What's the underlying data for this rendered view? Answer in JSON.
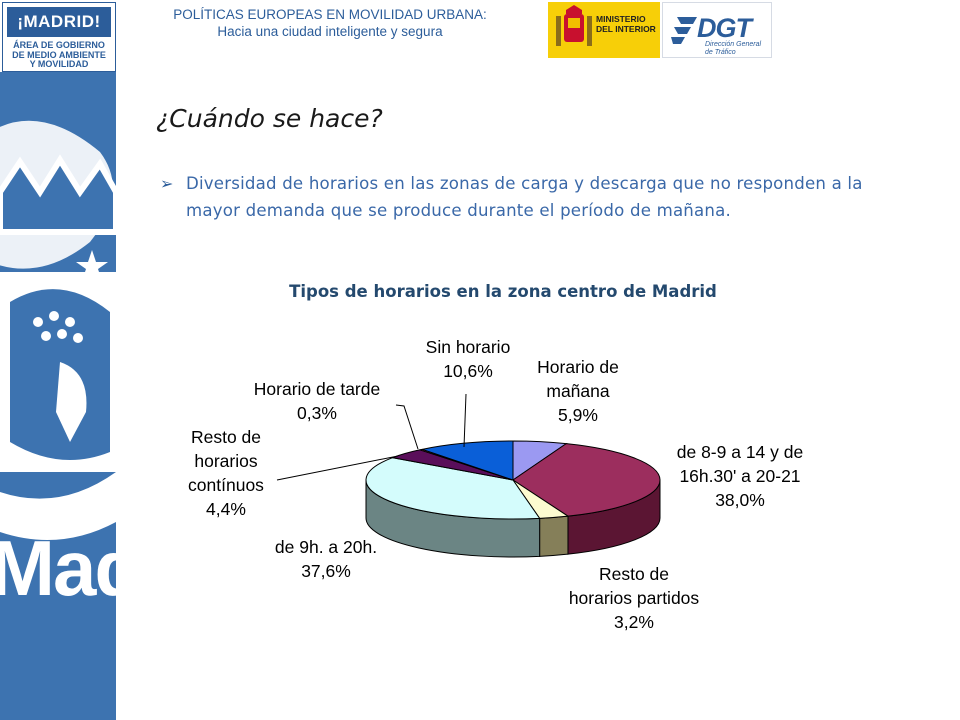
{
  "header": {
    "line1": "POLÍTICAS EUROPEAS EN MOVILIDAD URBANA:",
    "line2": "Hacia una ciudad inteligente y segura"
  },
  "logos": {
    "madrid_top": "¡MADRID!",
    "madrid_sub": [
      "ÁREA DE GOBIERNO",
      "DE MEDIO AMBIENTE",
      "Y MOVILIDAD"
    ],
    "ministry": [
      "MINISTERIO",
      "DEL INTERIOR"
    ],
    "dgt": "DGT",
    "dgt_sub": [
      "Dirección General",
      "de Tráfico"
    ],
    "left_band_text": "Madrid"
  },
  "slide": {
    "title": "¿Cuándo se hace?",
    "bullet": "Diversidad de horarios en las zonas de carga y descarga que no responden a la mayor demanda que se produce durante el período de mañana."
  },
  "colors": {
    "brand_blue": "#2c5d9a",
    "band_blue": "#3d73b0",
    "ministry_yellow": "#f7cf08"
  },
  "chart_data": {
    "type": "pie",
    "title": "Tipos de horarios en la zona centro de Madrid",
    "unit": "%",
    "slices": [
      {
        "name": "Horario de mañana",
        "value": 5.9,
        "label_lines": [
          "Horario de",
          "mañana",
          "5,9%"
        ],
        "color": "#9b99f2",
        "side": "#6f6dc0"
      },
      {
        "name": "de 8-9 a 14 y de 16h.30' a 20-21",
        "value": 38.0,
        "label_lines": [
          "de 8-9 a 14 y de",
          "16h.30' a 20-21",
          "38,0%"
        ],
        "color": "#9c2e5e",
        "side": "#5b1533"
      },
      {
        "name": "Resto de horarios partidos",
        "value": 3.2,
        "label_lines": [
          "Resto de",
          "horarios partidos",
          "3,2%"
        ],
        "color": "#fcfbd0",
        "side": "#857f59"
      },
      {
        "name": "de 9h. a 20h.",
        "value": 37.6,
        "label_lines": [
          "de 9h. a 20h.",
          "37,6%"
        ],
        "color": "#d4fcfc",
        "side": "#6b8584"
      },
      {
        "name": "Resto de horarios contínuos",
        "value": 4.4,
        "label_lines": [
          "Resto de",
          "horarios",
          "contínuos",
          "4,4%"
        ],
        "color": "#5a0e5a",
        "side": "#3a063a"
      },
      {
        "name": "Horario de tarde",
        "value": 0.3,
        "label_lines": [
          "Horario de tarde",
          "0,3%"
        ],
        "color": "#ff7f7f",
        "side": "#a04848"
      },
      {
        "name": "Sin horario",
        "value": 10.6,
        "label_lines": [
          "Sin horario",
          "10,6%"
        ],
        "color": "#0a5fd8",
        "side": "#063a84"
      }
    ]
  }
}
